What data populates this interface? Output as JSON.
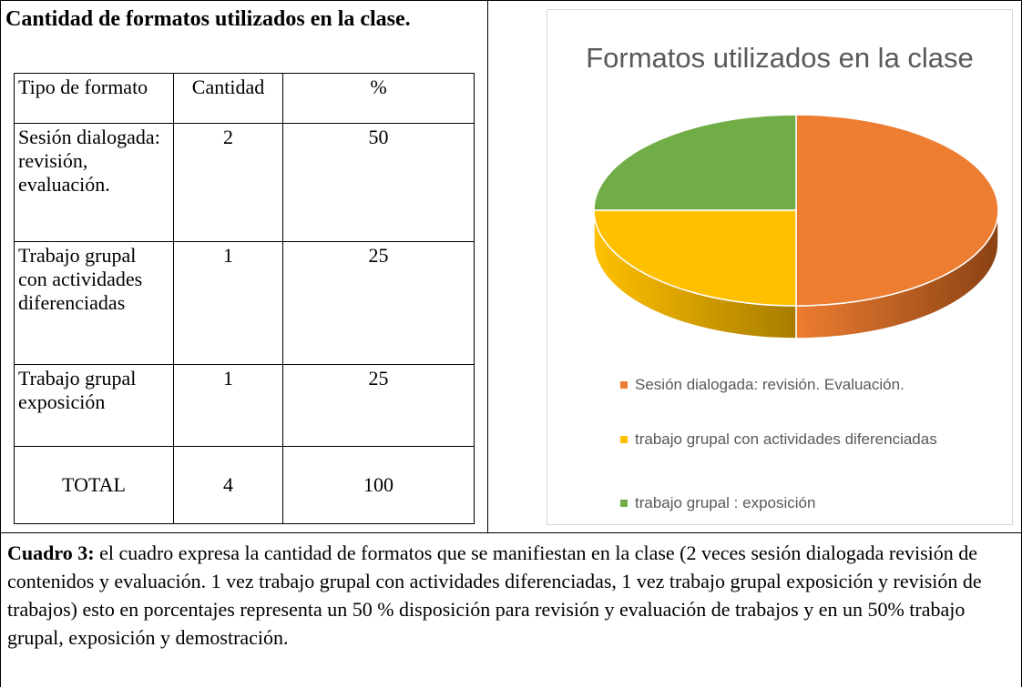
{
  "heading": "Cantidad de formatos utilizados en la clase.",
  "table": {
    "header": [
      "Tipo de formato",
      "Cantidad",
      "%"
    ],
    "rows": [
      [
        "Sesión dialogada: revisión, evaluación.",
        2,
        50
      ],
      [
        "Trabajo grupal con actividades diferenciadas",
        1,
        25
      ],
      [
        "Trabajo grupal exposición",
        1,
        25
      ],
      [
        "TOTAL",
        4,
        100
      ]
    ]
  },
  "chart_data": {
    "type": "pie",
    "title": "Formatos utilizados en la clase",
    "categories": [
      "Sesión dialogada: revisión. Evaluación.",
      "trabajo grupal con actividades diferenciadas",
      "trabajo grupal : exposición"
    ],
    "values": [
      50,
      25,
      25
    ],
    "colors": [
      "#ed7d31",
      "#ffc000",
      "#70ad47"
    ],
    "side_colors": [
      "#8a4214",
      "#a87c00",
      "#3f6a25"
    ],
    "legend": "bottom"
  },
  "caption": {
    "label": "Cuadro 3:",
    "text": "el cuadro expresa la cantidad de formatos que se manifiestan en la clase (2 veces sesión dialogada revisión de contenidos y evaluación. 1 vez trabajo grupal con actividades diferenciadas, 1 vez trabajo grupal exposición y revisión de trabajos) esto en porcentajes representa un 50 % disposición para revisión y evaluación de trabajos y en un 50% trabajo grupal, exposición y demostración."
  }
}
